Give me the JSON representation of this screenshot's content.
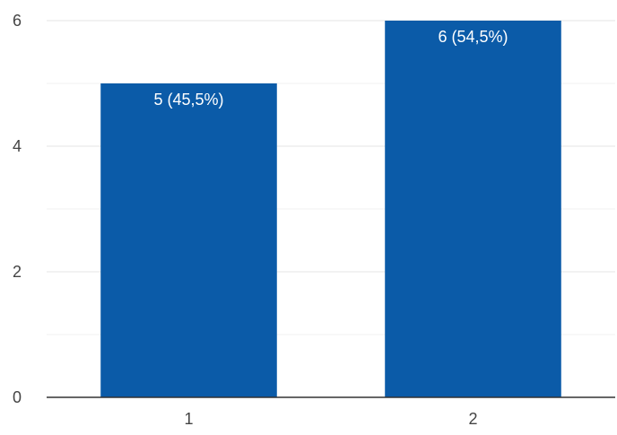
{
  "chart_data": {
    "type": "bar",
    "title": "",
    "xlabel": "",
    "ylabel": "",
    "categories": [
      "1",
      "2"
    ],
    "values": [
      5,
      6
    ],
    "data_labels": [
      "5 (45,5%)",
      "6 (54,5%)"
    ],
    "ylim": [
      0,
      6
    ],
    "yticks": [
      0,
      2,
      4,
      6
    ],
    "yticks_labels": [
      "0",
      "2",
      "4",
      "6"
    ],
    "grid": true,
    "minor_grid": true,
    "colors": {
      "bar": "#0b5ba8",
      "data_label": "#ffffff",
      "grid": "#e6e6e6",
      "axis": "#333333",
      "tick_label": "#444444"
    }
  }
}
